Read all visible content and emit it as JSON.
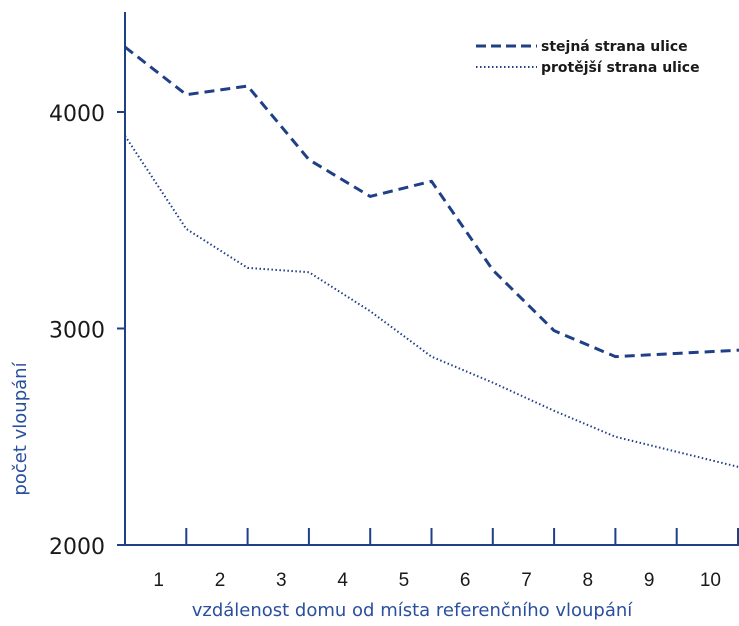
{
  "chart_data": {
    "type": "line",
    "title": "",
    "xlabel": "vzdálenost domu od místa referenčního vloupání",
    "ylabel": "počet vloupání",
    "categories": [
      "1",
      "2",
      "3",
      "4",
      "5",
      "6",
      "7",
      "8",
      "9",
      "10"
    ],
    "x": [
      0,
      1,
      2,
      3,
      4,
      5,
      6,
      7,
      8,
      9,
      10
    ],
    "yticks": [
      "2000",
      "3000",
      "4000"
    ],
    "ylim": [
      2000,
      4500
    ],
    "grid": false,
    "legend_position": "top-right",
    "series": [
      {
        "name": "stejná strana ulice",
        "style": "dashed",
        "values": [
          4300,
          4080,
          4120,
          3780,
          3610,
          3680,
          3270,
          2990,
          2870,
          2900
        ]
      },
      {
        "name": "protější strana ulice",
        "style": "dotted",
        "values": [
          3890,
          3460,
          3280,
          3260,
          3080,
          2870,
          2750,
          2620,
          2500,
          2360
        ]
      }
    ],
    "colors": {
      "series": "#1f3f86",
      "axis": "#1f3f86",
      "axis_title": "#2a4f9e"
    }
  }
}
